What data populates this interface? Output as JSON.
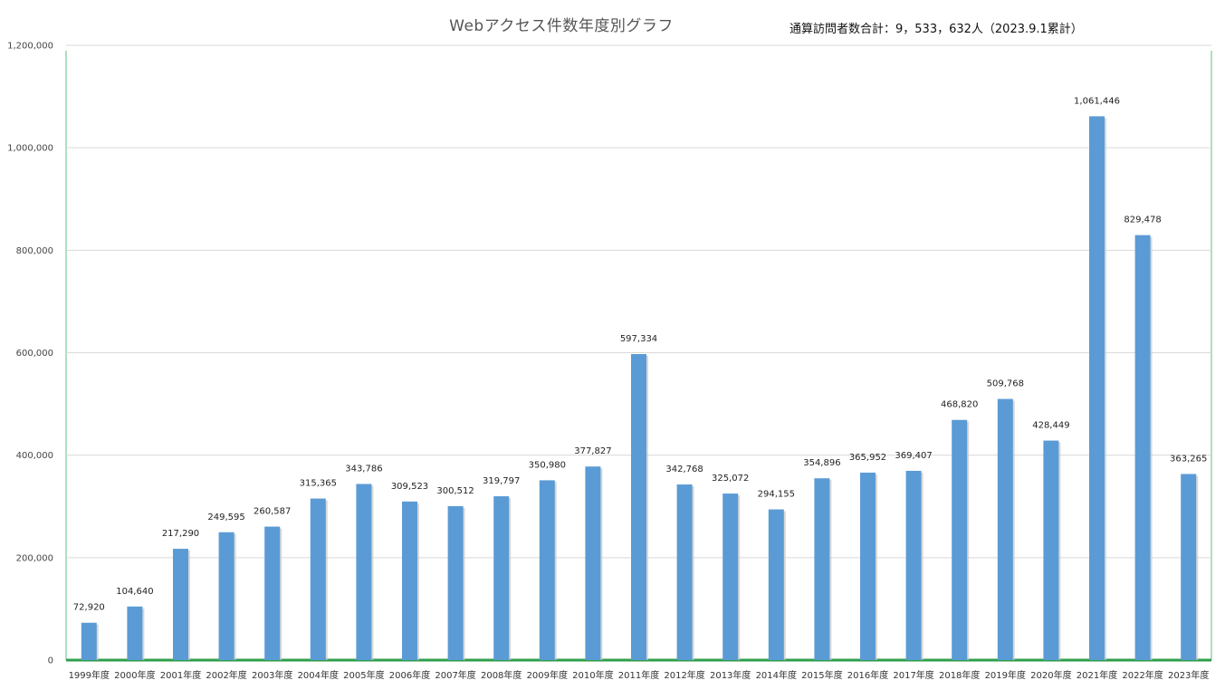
{
  "chart_data": {
    "type": "bar",
    "title": "Webアクセス件数年度別グラフ",
    "annotation": "通算訪問者数合計：9，533，632人（2023.9.1累計）",
    "xlabel": "",
    "ylabel": "",
    "ylim": [
      0,
      1200000
    ],
    "yticks": [
      0,
      200000,
      400000,
      600000,
      800000,
      1000000,
      1200000
    ],
    "ytick_labels": [
      "0",
      "200,000",
      "400,000",
      "600,000",
      "800,000",
      "1,000,000",
      "1,200,000"
    ],
    "grid": true,
    "legend": "none",
    "bar_color": "#5b9bd5",
    "grid_color": "#d9d9d9",
    "frame_color": "#92d6a6",
    "baseline_color": "#2e9e4a",
    "categories": [
      "1999年度",
      "2000年度",
      "2001年度",
      "2002年度",
      "2003年度",
      "2004年度",
      "2005年度",
      "2006年度",
      "2007年度",
      "2008年度",
      "2009年度",
      "2010年度",
      "2011年度",
      "2012年度",
      "2013年度",
      "2014年度",
      "2015年度",
      "2016年度",
      "2017年度",
      "2018年度",
      "2019年度",
      "2020年度",
      "2021年度",
      "2022年度",
      "2023年度"
    ],
    "values": [
      72920,
      104640,
      217290,
      249595,
      260587,
      315365,
      343786,
      309523,
      300512,
      319797,
      350980,
      377827,
      597334,
      342768,
      325072,
      294155,
      354896,
      365952,
      369407,
      468820,
      509768,
      428449,
      1061446,
      829478,
      363265
    ],
    "data_labels": [
      "72,920",
      "104,640",
      "217,290",
      "249,595",
      "260,587",
      "315,365",
      "343,786",
      "309,523",
      "300,512",
      "319,797",
      "350,980",
      "377,827",
      "597,334",
      "342,768",
      "325,072",
      "294,155",
      "354,896",
      "365,952",
      "369,407",
      "468,820",
      "509,768",
      "428,449",
      "1,061,446",
      "829,478",
      "363,265"
    ]
  }
}
